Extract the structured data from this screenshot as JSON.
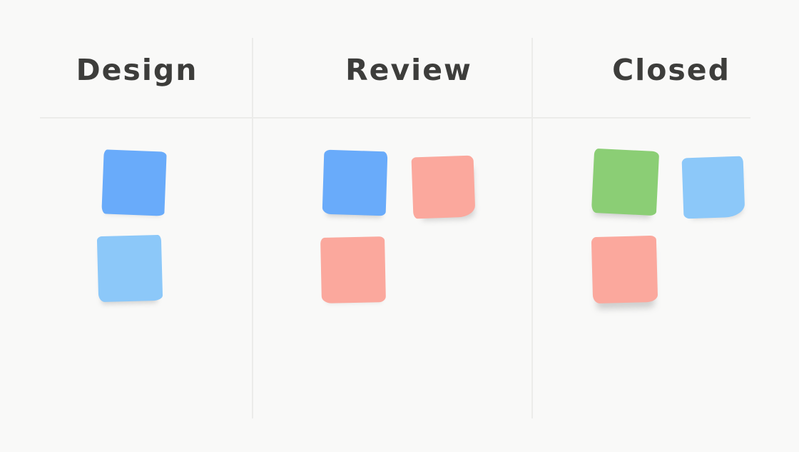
{
  "colors": {
    "background": "#f9f9f8",
    "divider": "#ececea",
    "ink": "#3d3d3b"
  },
  "columns": [
    {
      "name": "Design",
      "notes": [
        {
          "color": "#69abfa",
          "color_name": "blue",
          "text": ""
        },
        {
          "color": "#8cc8f9",
          "color_name": "light-blue",
          "text": ""
        }
      ]
    },
    {
      "name": "Review",
      "notes": [
        {
          "color": "#69abfa",
          "color_name": "blue",
          "text": ""
        },
        {
          "color": "#fba89d",
          "color_name": "salmon",
          "text": ""
        },
        {
          "color": "#fba89d",
          "color_name": "salmon",
          "text": ""
        }
      ]
    },
    {
      "name": "Closed",
      "notes": [
        {
          "color": "#8bce75",
          "color_name": "green",
          "text": ""
        },
        {
          "color": "#8cc8f9",
          "color_name": "light-blue",
          "text": ""
        },
        {
          "color": "#fba89d",
          "color_name": "salmon",
          "text": ""
        }
      ]
    }
  ]
}
